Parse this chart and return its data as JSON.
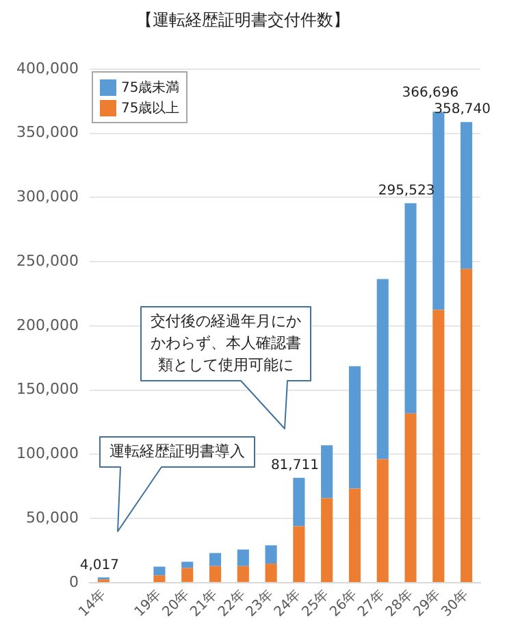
{
  "chart_data": {
    "type": "bar",
    "title": "【運転経歴証明書交付件数】",
    "stacked": true,
    "categories": [
      "14年",
      null,
      "19年",
      "20年",
      "21年",
      "22年",
      "23年",
      "24年",
      "25年",
      "26年",
      "27年",
      "28年",
      "29年",
      "30年"
    ],
    "series": [
      {
        "name": "75歳以上",
        "color": "#ed7d31",
        "values": [
          2500,
          null,
          5700,
          11400,
          12900,
          12900,
          14800,
          43900,
          65800,
          73300,
          96200,
          131800,
          212500,
          244300
        ]
      },
      {
        "name": "75歳未満",
        "color": "#5b9bd5",
        "values": [
          1517,
          null,
          6800,
          4900,
          10200,
          12900,
          14300,
          37811,
          41200,
          95300,
          140200,
          163723,
          154196,
          114440
        ]
      }
    ],
    "totals": [
      "4,017",
      null,
      null,
      null,
      null,
      null,
      null,
      "81,711",
      null,
      null,
      null,
      "295,523",
      "366,696",
      "358,740"
    ],
    "ylim": [
      0,
      400000
    ],
    "yticks": [
      0,
      {
        "value": 50000,
        "label": "50,000"
      },
      {
        "value": 100000,
        "label": "100,000"
      },
      {
        "value": 150000,
        "label": "150,000"
      },
      {
        "value": 200000,
        "label": "200,000"
      },
      {
        "value": 250000,
        "label": "250,000"
      },
      {
        "value": 300000,
        "label": "300,000"
      },
      {
        "value": 350000,
        "label": "350,000"
      },
      {
        "value": 400000,
        "label": "400,000"
      }
    ],
    "grid": "y",
    "legend": "top left",
    "annotations": [
      "運転経歴証明書導入",
      "交付後の経過年月にかかわらず、本人確認書類として使用可能に"
    ]
  }
}
